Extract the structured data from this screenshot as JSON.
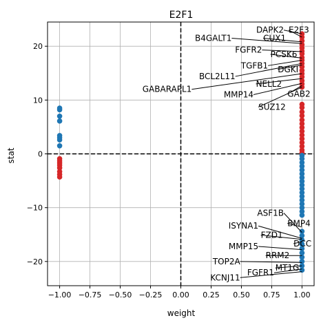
{
  "chart_data": {
    "type": "scatter",
    "title": "E2F1",
    "xlabel": "weight",
    "ylabel": "stat",
    "xlim": [
      -1.1,
      1.1
    ],
    "ylim": [
      -24.5,
      24.5
    ],
    "xticks": [
      -1.0,
      -0.75,
      -0.5,
      -0.25,
      0.0,
      0.25,
      0.5,
      0.75,
      1.0
    ],
    "xtick_labels": [
      "−1.00",
      "−0.75",
      "−0.50",
      "−0.25",
      "0.00",
      "0.25",
      "0.50",
      "0.75",
      "1.00"
    ],
    "yticks": [
      -20,
      -10,
      0,
      10,
      20
    ],
    "ytick_labels": [
      "−20",
      "−10",
      "0",
      "10",
      "20"
    ],
    "grid": true,
    "reference_lines": {
      "x": 0,
      "y": 0
    },
    "colors": {
      "activating": "#d62728",
      "repressing": "#1f77b4"
    },
    "groups": [
      {
        "color_key": "activating",
        "x": 1.0,
        "y": [
          22.3,
          21.7,
          21.0,
          20.3,
          19.7,
          19.1,
          18.6,
          17.9,
          17.4,
          16.8,
          16.2,
          15.5,
          14.9,
          14.3,
          13.6,
          13.0,
          12.4,
          9.2,
          8.6,
          7.8,
          7.1,
          6.3,
          5.6,
          4.9,
          4.2,
          3.5,
          2.8,
          2.1,
          1.4,
          0.7,
          0.2
        ]
      },
      {
        "color_key": "repressing",
        "x": 1.0,
        "y": [
          -0.3,
          -0.9,
          -1.6,
          -2.3,
          -3.0,
          -3.7,
          -4.4,
          -5.1,
          -5.8,
          -6.5,
          -7.2,
          -7.9,
          -8.6,
          -9.3,
          -10.0,
          -10.7,
          -11.4,
          -14.4,
          -15.2,
          -16.0,
          -16.8,
          -17.6,
          -18.4,
          -19.2,
          -20.0,
          -20.8,
          -21.6
        ]
      },
      {
        "color_key": "repressing",
        "x": -1.0,
        "y": [
          8.5,
          8.2,
          7.0,
          6.1,
          3.4,
          3.0,
          2.6,
          1.5
        ]
      },
      {
        "color_key": "activating",
        "x": -1.0,
        "y": [
          -0.9,
          -1.3,
          -1.7,
          -2.1,
          -2.6,
          -3.3,
          -3.8,
          -4.3
        ]
      }
    ],
    "annotations": [
      {
        "text": "DAPK2",
        "x": 0.85,
        "y": 23.0,
        "ha": "right",
        "point_y": 22.3
      },
      {
        "text": "E2F3",
        "x": 0.89,
        "y": 23.0,
        "ha": "left",
        "point_y": 21.7
      },
      {
        "text": "B4GALT1",
        "x": 0.42,
        "y": 21.5,
        "ha": "right",
        "point_y": 20.5
      },
      {
        "text": "CUX1",
        "x": 0.68,
        "y": 21.5,
        "ha": "left",
        "point_y": 20.8
      },
      {
        "text": "FGFR2",
        "x": 0.67,
        "y": 19.3,
        "ha": "right",
        "point_y": 19.0
      },
      {
        "text": "PCSK6",
        "x": 0.74,
        "y": 18.5,
        "ha": "left",
        "point_y": 17.8
      },
      {
        "text": "TGFB1",
        "x": 0.72,
        "y": 16.4,
        "ha": "right",
        "point_y": 17.4
      },
      {
        "text": "DGKI",
        "x": 0.8,
        "y": 15.7,
        "ha": "left",
        "point_y": 16.5
      },
      {
        "text": "BCL2L11",
        "x": 0.45,
        "y": 14.4,
        "ha": "right",
        "point_y": 16.8
      },
      {
        "text": "NELL2",
        "x": 0.62,
        "y": 13.0,
        "ha": "left",
        "point_y": 14.0
      },
      {
        "text": "GABARAPL1",
        "x": 0.09,
        "y": 12.0,
        "ha": "right",
        "point_y": 14.9
      },
      {
        "text": "GAB2",
        "x": 0.88,
        "y": 11.1,
        "ha": "left",
        "point_y": 12.7
      },
      {
        "text": "MMP14",
        "x": 0.6,
        "y": 11.0,
        "ha": "right",
        "point_y": 13.1
      },
      {
        "text": "SUZ12",
        "x": 0.64,
        "y": 8.7,
        "ha": "left",
        "point_y": 12.4
      },
      {
        "text": "ASF1B",
        "x": 0.85,
        "y": -11.0,
        "ha": "right",
        "point_y": -14.6
      },
      {
        "text": "BMP4",
        "x": 0.88,
        "y": -12.9,
        "ha": "left",
        "point_y": -13.6
      },
      {
        "text": "ISYNA1",
        "x": 0.64,
        "y": -13.4,
        "ha": "right",
        "point_y": -15.7
      },
      {
        "text": "FZD1",
        "x": 0.66,
        "y": -15.1,
        "ha": "left",
        "point_y": -15.9
      },
      {
        "text": "DCC",
        "x": 0.93,
        "y": -16.7,
        "ha": "left",
        "point_y": -16.3
      },
      {
        "text": "MMP15",
        "x": 0.64,
        "y": -17.2,
        "ha": "right",
        "point_y": -17.8
      },
      {
        "text": "RRM2",
        "x": 0.7,
        "y": -18.9,
        "ha": "left",
        "point_y": -18.9
      },
      {
        "text": "TOP2A",
        "x": 0.49,
        "y": -20.0,
        "ha": "right",
        "point_y": -20.2
      },
      {
        "text": "MT1G",
        "x": 0.78,
        "y": -21.2,
        "ha": "left",
        "point_y": -20.8
      },
      {
        "text": "FGFR1",
        "x": 0.77,
        "y": -22.1,
        "ha": "right",
        "point_y": -21.4
      },
      {
        "text": "KCNJ11",
        "x": 0.49,
        "y": -23.0,
        "ha": "right",
        "point_y": -21.9
      }
    ]
  }
}
